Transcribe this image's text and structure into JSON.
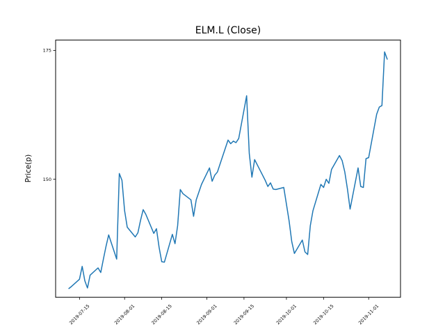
{
  "figure": {
    "title": "ELM.L (Close)",
    "ylabel": "Price(p)",
    "background": "#ffffff",
    "line_color": "#1f77b4"
  },
  "chart_data": {
    "type": "line",
    "title": "ELM.L (Close)",
    "xlabel": "",
    "ylabel": "Price(p)",
    "grid": false,
    "legend": "none",
    "xlim": [
      "2019-07-06",
      "2019-11-13"
    ],
    "ylim": [
      127.1,
      177.0
    ],
    "xticks": [
      "2019-07-15",
      "2019-08-01",
      "2019-08-15",
      "2019-09-01",
      "2019-09-15",
      "2019-10-01",
      "2019-10-15",
      "2019-11-01"
    ],
    "yticks": [
      150,
      175
    ],
    "xtick_rotation_deg": 45,
    "series": [
      {
        "name": "Close",
        "color": "#1f77b4",
        "x": [
          "2019-07-11",
          "2019-07-12",
          "2019-07-15",
          "2019-07-16",
          "2019-07-17",
          "2019-07-18",
          "2019-07-19",
          "2019-07-22",
          "2019-07-23",
          "2019-07-24",
          "2019-07-25",
          "2019-07-26",
          "2019-07-29",
          "2019-07-30",
          "2019-07-31",
          "2019-08-01",
          "2019-08-02",
          "2019-08-05",
          "2019-08-06",
          "2019-08-07",
          "2019-08-08",
          "2019-08-09",
          "2019-08-12",
          "2019-08-13",
          "2019-08-14",
          "2019-08-15",
          "2019-08-16",
          "2019-08-19",
          "2019-08-20",
          "2019-08-21",
          "2019-08-22",
          "2019-08-23",
          "2019-08-26",
          "2019-08-27",
          "2019-08-28",
          "2019-08-29",
          "2019-08-30",
          "2019-09-02",
          "2019-09-03",
          "2019-09-04",
          "2019-09-05",
          "2019-09-06",
          "2019-09-09",
          "2019-09-10",
          "2019-09-11",
          "2019-09-12",
          "2019-09-13",
          "2019-09-16",
          "2019-09-17",
          "2019-09-18",
          "2019-09-19",
          "2019-09-20",
          "2019-09-23",
          "2019-09-24",
          "2019-09-25",
          "2019-09-26",
          "2019-09-27",
          "2019-09-30",
          "2019-10-01",
          "2019-10-02",
          "2019-10-03",
          "2019-10-04",
          "2019-10-07",
          "2019-10-08",
          "2019-10-09",
          "2019-10-10",
          "2019-10-11",
          "2019-10-14",
          "2019-10-15",
          "2019-10-16",
          "2019-10-17",
          "2019-10-18",
          "2019-10-21",
          "2019-10-22",
          "2019-10-23",
          "2019-10-24",
          "2019-10-25",
          "2019-10-28",
          "2019-10-29",
          "2019-10-30",
          "2019-10-31",
          "2019-11-01",
          "2019-11-04",
          "2019-11-05",
          "2019-11-06",
          "2019-11-07",
          "2019-11-08"
        ],
        "values": [
          128.8,
          129.2,
          130.6,
          133.1,
          130.3,
          128.9,
          131.4,
          132.8,
          131.9,
          134.5,
          137.0,
          139.2,
          134.5,
          151.1,
          149.8,
          143.9,
          140.7,
          138.8,
          139.6,
          142.0,
          144.1,
          143.2,
          139.5,
          140.4,
          136.8,
          134.0,
          133.9,
          139.3,
          137.5,
          141.0,
          148.0,
          147.2,
          146.0,
          142.8,
          146.0,
          147.5,
          149.0,
          152.2,
          149.6,
          150.8,
          151.4,
          153.0,
          157.6,
          156.9,
          157.4,
          157.1,
          157.9,
          166.2,
          155.0,
          150.4,
          153.8,
          152.8,
          149.8,
          148.6,
          149.3,
          148.1,
          148.0,
          148.4,
          145.2,
          141.9,
          137.9,
          135.6,
          138.2,
          135.9,
          135.4,
          141.0,
          143.9,
          149.0,
          148.4,
          150.0,
          149.2,
          151.9,
          154.6,
          153.6,
          151.4,
          148.1,
          144.2,
          152.2,
          148.6,
          148.4,
          154.0,
          154.2,
          162.6,
          164.0,
          164.3,
          174.7,
          173.3
        ]
      }
    ]
  }
}
